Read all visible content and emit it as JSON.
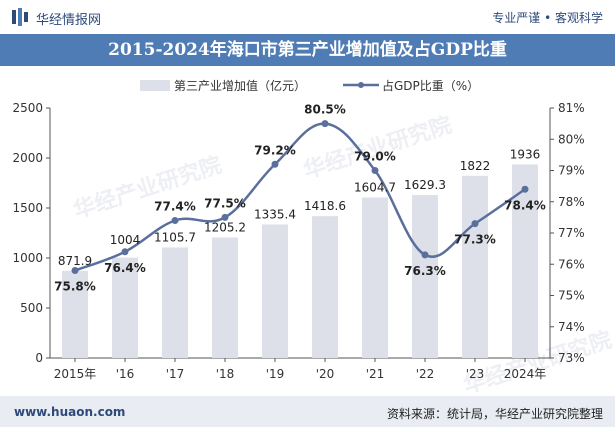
{
  "header": {
    "brand": "华经情报网",
    "slogan": "专业严谨 • 客观科学"
  },
  "title": "2015-2024年海口市第三产业增加值及占GDP比重",
  "legend": {
    "bar_label": "第三产业增加值（亿元）",
    "line_label": "占GDP比重（%）"
  },
  "watermark": "华经产业研究院",
  "footer": {
    "url": "www.huaon.com",
    "source": "资料来源：统计局，华经产业研究院整理"
  },
  "colors": {
    "title_bg": "#4f7cb5",
    "bar": "#dde0e8",
    "line": "#5a6f9c",
    "footer_bg": "#e9ecf3"
  },
  "chart_data": {
    "type": "bar",
    "title": "2015-2024年海口市第三产业增加值及占GDP比重",
    "categories": [
      "2015年",
      "'16",
      "'17",
      "'18",
      "'19",
      "'20",
      "'21",
      "'22",
      "'23",
      "2024年"
    ],
    "series": [
      {
        "name": "第三产业增加值（亿元）",
        "type": "bar",
        "axis": "left",
        "values": [
          871.9,
          1004,
          1105.7,
          1205.2,
          1335.4,
          1418.6,
          1604.7,
          1629.3,
          1822,
          1936
        ],
        "labels": [
          "871.9",
          "1004",
          "1105.7",
          "1205.2",
          "1335.4",
          "1418.6",
          "1604.7",
          "1629.3",
          "1822",
          "1936"
        ]
      },
      {
        "name": "占GDP比重（%）",
        "type": "line",
        "axis": "right",
        "values": [
          75.8,
          76.4,
          77.4,
          77.5,
          79.2,
          80.5,
          79.0,
          76.3,
          77.3,
          78.4
        ],
        "labels": [
          "75.8%",
          "76.4%",
          "77.4%",
          "77.5%",
          "79.2%",
          "80.5%",
          "79.0%",
          "76.3%",
          "77.3%",
          "78.4%"
        ]
      }
    ],
    "y_left": {
      "range": [
        0,
        2500
      ],
      "ticks": [
        "0",
        "500",
        "1000",
        "1500",
        "2000",
        "2500"
      ]
    },
    "y_right": {
      "range": [
        73,
        81
      ],
      "ticks": [
        "73%",
        "74%",
        "75%",
        "76%",
        "77%",
        "78%",
        "79%",
        "80%",
        "81%"
      ]
    },
    "grid": false,
    "legend_position": "top"
  }
}
